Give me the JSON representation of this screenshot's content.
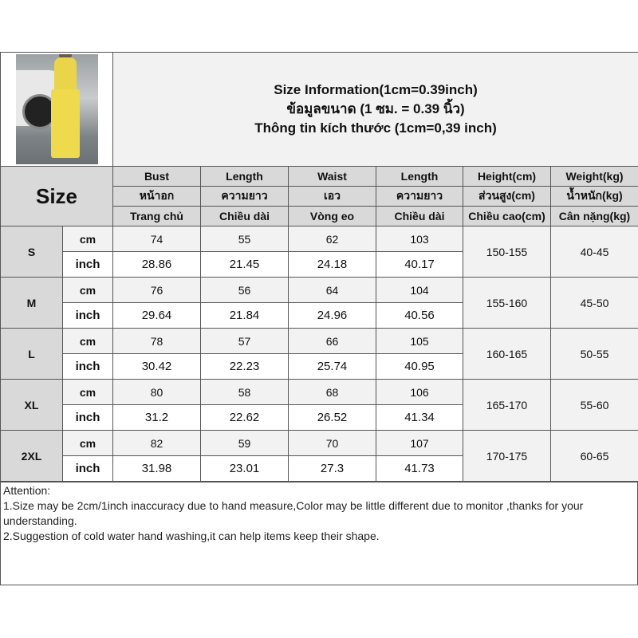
{
  "title": {
    "line1": "Size Information(1cm=0.39inch)",
    "line2": "ข้อมูลขนาด (1 ซม. = 0.39 นิ้ว)",
    "line3": "Thông tin kích thước (1cm=0,39 inch)"
  },
  "size_label": "Size",
  "headers": [
    {
      "en": "Bust",
      "th": "หน้าอก",
      "vi": "Trang chủ"
    },
    {
      "en": "Length",
      "th": "ความยาว",
      "vi": "Chiều dài"
    },
    {
      "en": "Waist",
      "th": "เอว",
      "vi": "Vòng eo"
    },
    {
      "en": "Length",
      "th": "ความยาว",
      "vi": "Chiều dài"
    },
    {
      "en": "Height(cm)",
      "th": "ส่วนสูง(cm)",
      "vi": "Chiều cao(cm)"
    },
    {
      "en": "Weight(kg)",
      "th": "น้ำหนัก(kg)",
      "vi": "Cân nặng(kg)"
    }
  ],
  "units": {
    "cm": "cm",
    "inch": "inch"
  },
  "rows": [
    {
      "size": "S",
      "cm": [
        "74",
        "55",
        "62",
        "103"
      ],
      "inch": [
        "28.86",
        "21.45",
        "24.18",
        "40.17"
      ],
      "height": "150-155",
      "weight": "40-45"
    },
    {
      "size": "M",
      "cm": [
        "76",
        "56",
        "64",
        "104"
      ],
      "inch": [
        "29.64",
        "21.84",
        "24.96",
        "40.56"
      ],
      "height": "155-160",
      "weight": "45-50"
    },
    {
      "size": "L",
      "cm": [
        "78",
        "57",
        "66",
        "105"
      ],
      "inch": [
        "30.42",
        "22.23",
        "25.74",
        "40.95"
      ],
      "height": "160-165",
      "weight": "50-55"
    },
    {
      "size": "XL",
      "cm": [
        "80",
        "58",
        "68",
        "106"
      ],
      "inch": [
        "31.2",
        "22.62",
        "26.52",
        "41.34"
      ],
      "height": "165-170",
      "weight": "55-60"
    },
    {
      "size": "2XL",
      "cm": [
        "82",
        "59",
        "70",
        "107"
      ],
      "inch": [
        "31.98",
        "23.01",
        "27.3",
        "41.73"
      ],
      "height": "170-175",
      "weight": "60-65"
    }
  ],
  "attention": {
    "heading": "Attention:",
    "note1": "1.Size may be 2cm/1inch inaccuracy due to hand measure,Color may be little different due to monitor ,thanks for your understanding.",
    "note2": "2.Suggestion of cold water hand washing,it can help items keep their shape."
  }
}
